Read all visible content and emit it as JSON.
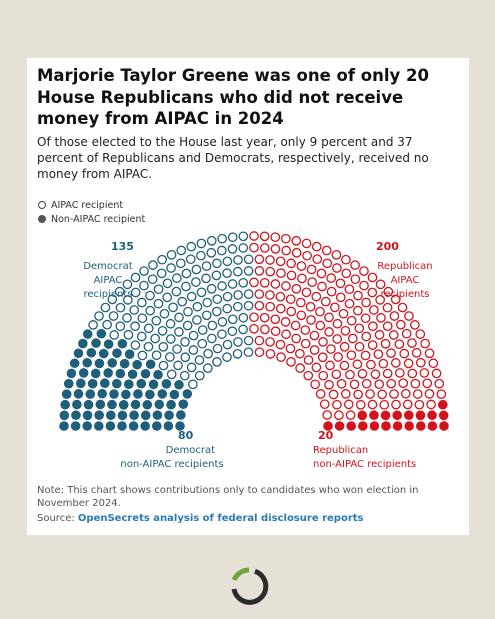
{
  "title": "Marjorie Taylor Greene was one of only 20 House Republicans who did not receive money from AIPAC in 2024",
  "subtitle": "Of those elected to the House last year, only 9 percent and 37 percent of Republicans and Democrats, respectively, received no money from AIPAC.",
  "legend": {
    "aipac": "AIPAC recipient",
    "non_aipac": "Non-AIPAC recipient"
  },
  "labels": {
    "dem_aipac_num": "135",
    "dem_aipac_line1": "Democrat",
    "dem_aipac_line2": "AIPAC",
    "dem_aipac_line3": "recipients",
    "rep_aipac_num": "200",
    "rep_aipac_line1": "Republican",
    "rep_aipac_line2": "AIPAC",
    "rep_aipac_line3": "recipients",
    "dem_non_num": "80",
    "dem_non_line1": "Democrat",
    "dem_non_line2": "non-AIPAC recipients",
    "rep_non_num": "20",
    "rep_non_line1": "Republican",
    "rep_non_line2": "non-AIPAC recipients"
  },
  "note": "Note: This chart shows contributions only to candidates who won election in November 2024.",
  "source_prefix": "Source: ",
  "source_link": "OpenSecrets analysis of federal disclosure reports",
  "colors": {
    "democrat": "#1f5f7a",
    "republican": "#d3121c",
    "background": "#e6e1d7"
  },
  "chart_data": {
    "type": "parliament",
    "series": [
      {
        "name": "Democrat non-AIPAC recipients",
        "value": 80,
        "party": "Democrat",
        "style": "filled"
      },
      {
        "name": "Democrat AIPAC recipients",
        "value": 135,
        "party": "Democrat",
        "style": "open"
      },
      {
        "name": "Republican AIPAC recipients",
        "value": 200,
        "party": "Republican",
        "style": "open"
      },
      {
        "name": "Republican non-AIPAC recipients",
        "value": 20,
        "party": "Republican",
        "style": "filled"
      }
    ],
    "total": 435
  }
}
